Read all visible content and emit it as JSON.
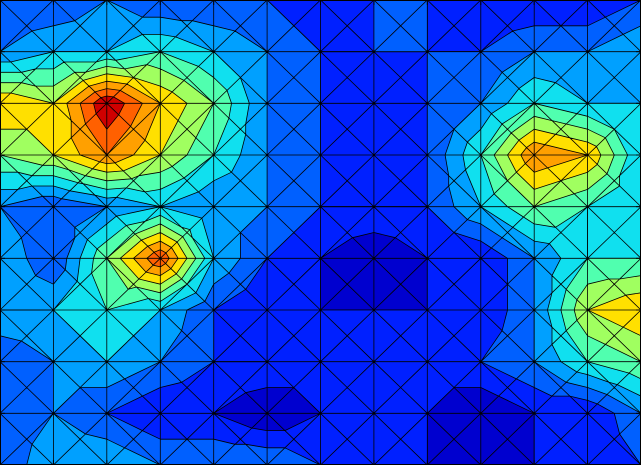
{
  "chart_data": {
    "type": "contour",
    "filled": true,
    "title": "",
    "xlabel": "",
    "ylabel": "",
    "xlim": [
      0,
      12
    ],
    "ylim": [
      0,
      9
    ],
    "grid": false,
    "legend": "none",
    "colormap": "jet",
    "levels": [
      0,
      1,
      2,
      3,
      4,
      5,
      6,
      7,
      8,
      9,
      10,
      11
    ],
    "level_colors": [
      "#00008F",
      "#0000CF",
      "#0020FF",
      "#0060FF",
      "#00A0FF",
      "#10E0EF",
      "#50FFAF",
      "#A0FF60",
      "#FFE000",
      "#FFA000",
      "#FF6000",
      "#CF0000"
    ],
    "z": [
      [
        3,
        5,
        5,
        4,
        4,
        4,
        3,
        2,
        2,
        2,
        2,
        2,
        3
      ],
      [
        3,
        4,
        3,
        2,
        2,
        1,
        2,
        2,
        2,
        1,
        2,
        2,
        4
      ],
      [
        3,
        4,
        5,
        4,
        3,
        3,
        2,
        2,
        2,
        3,
        4,
        6,
        7
      ],
      [
        5,
        5,
        6,
        5,
        3,
        2,
        2,
        2,
        2,
        2,
        4,
        8,
        9
      ],
      [
        5,
        3,
        7,
        11,
        5,
        3,
        2,
        1,
        2,
        2,
        4,
        6,
        6
      ],
      [
        4,
        3,
        4,
        5,
        4,
        4,
        3,
        3,
        3,
        5,
        7,
        6,
        5
      ],
      [
        7,
        8,
        10,
        8,
        6,
        4,
        3,
        2,
        3,
        6,
        10,
        9,
        5
      ],
      [
        9,
        8,
        12,
        9,
        7,
        4,
        3,
        2,
        3,
        4,
        6,
        5,
        5
      ],
      [
        4,
        5,
        5,
        6,
        5,
        4,
        3,
        3,
        3,
        3,
        4,
        4,
        5
      ],
      [
        3,
        3,
        4,
        3,
        3,
        3,
        2,
        3,
        3,
        2,
        2,
        2,
        3
      ]
    ]
  }
}
